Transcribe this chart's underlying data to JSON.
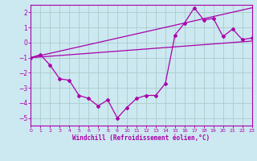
{
  "xlabel": "Windchill (Refroidissement éolien,°C)",
  "xlim": [
    0,
    23
  ],
  "ylim": [
    -5.5,
    2.5
  ],
  "yticks": [
    2,
    1,
    0,
    -1,
    -2,
    -3,
    -4,
    -5
  ],
  "xticks": [
    0,
    1,
    2,
    3,
    4,
    5,
    6,
    7,
    8,
    9,
    10,
    11,
    12,
    13,
    14,
    15,
    16,
    17,
    18,
    19,
    20,
    21,
    22,
    23
  ],
  "bg_color": "#cce8f0",
  "grid_color": "#aacccc",
  "line_color": "#aa00aa",
  "main_x": [
    0,
    1,
    2,
    3,
    4,
    5,
    6,
    7,
    8,
    9,
    10,
    11,
    12,
    13,
    14,
    15,
    16,
    17,
    18,
    19,
    20,
    21,
    22,
    23
  ],
  "main_y": [
    -1.0,
    -0.8,
    -1.5,
    -2.4,
    -2.5,
    -3.5,
    -3.7,
    -4.2,
    -3.8,
    -5.0,
    -4.3,
    -3.7,
    -3.5,
    -3.5,
    -2.7,
    0.5,
    1.3,
    2.3,
    1.5,
    1.6,
    0.4,
    0.9,
    0.2,
    0.3
  ],
  "line2_x": [
    0,
    23
  ],
  "line2_y": [
    -1.0,
    2.3
  ],
  "line3_x": [
    0,
    23
  ],
  "line3_y": [
    -1.0,
    0.1
  ]
}
